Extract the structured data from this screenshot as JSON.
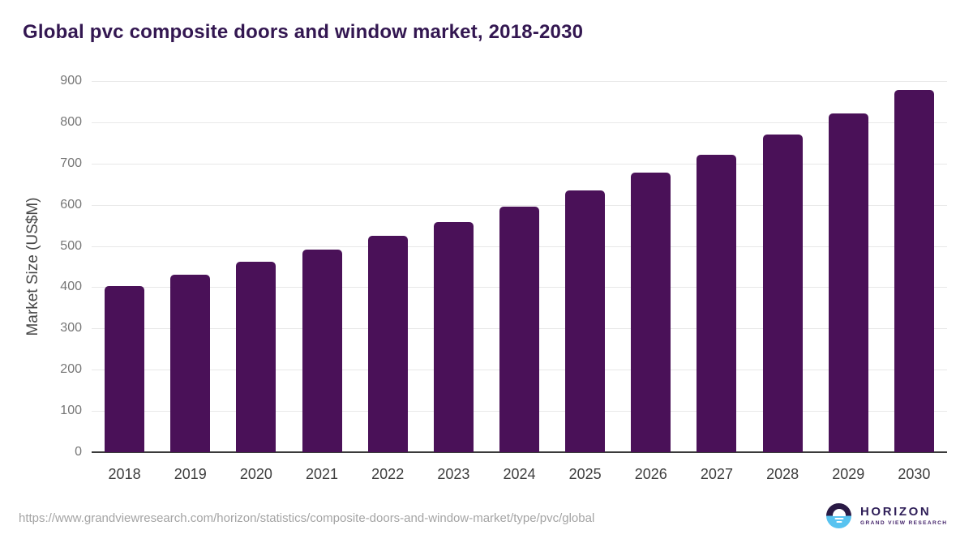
{
  "title": "Global pvc composite doors and window market, 2018-2030",
  "chart_data": {
    "type": "bar",
    "title": "Global pvc composite doors and window market, 2018-2030",
    "categories": [
      "2018",
      "2019",
      "2020",
      "2021",
      "2022",
      "2023",
      "2024",
      "2025",
      "2026",
      "2027",
      "2028",
      "2029",
      "2030"
    ],
    "values": [
      403,
      430,
      461,
      491,
      524,
      559,
      595,
      635,
      677,
      722,
      770,
      822,
      878
    ],
    "xlabel": "",
    "ylabel": "Market Size (US$M)",
    "ylim": [
      0,
      900
    ],
    "yticks": [
      0,
      100,
      200,
      300,
      400,
      500,
      600,
      700,
      800,
      900
    ],
    "grid": true,
    "legend": "none",
    "bar_color": "#4a1158"
  },
  "footer": {
    "source_url": "https://www.grandviewresearch.com/horizon/statistics/composite-doors-and-window-market/type/pvc/global",
    "logo": {
      "name": "HORIZON",
      "subtitle": "GRAND VIEW RESEARCH",
      "icon": "horizon-sunrise-circle-icon",
      "icon_colors": {
        "top": "#2a1a45",
        "bottom": "#58c3f0"
      }
    }
  }
}
